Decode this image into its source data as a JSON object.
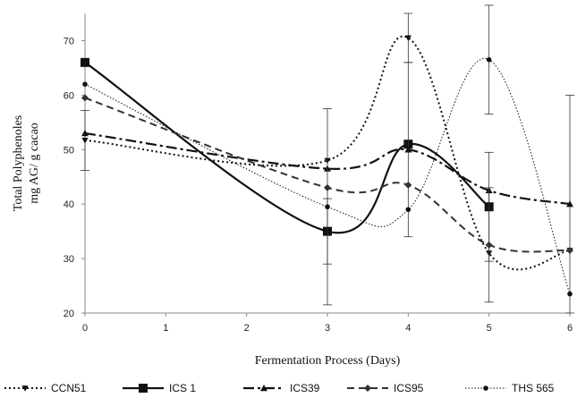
{
  "chart_data": {
    "type": "line",
    "title": "",
    "xlabel": "Fermentation Process (Days)",
    "ylabel_lines": [
      "Total Polyphenoles",
      "mg AG/ g cacao"
    ],
    "x_ticks": [
      0,
      1,
      2,
      3,
      4,
      5,
      6
    ],
    "y_ticks": [
      20,
      30,
      40,
      50,
      60,
      70
    ],
    "xlim": [
      0,
      6
    ],
    "ylim": [
      20,
      75
    ],
    "grid": false,
    "legend_position": "bottom",
    "smooth": true,
    "series": [
      {
        "name": "CCN51",
        "color": "#111111",
        "dash": "dotted",
        "marker": "triangle-down",
        "points": [
          {
            "x": 0,
            "y": 51.7,
            "err": 5.5
          },
          {
            "x": 3,
            "y": 48.0
          },
          {
            "x": 4,
            "y": 70.5,
            "err": 4.5
          },
          {
            "x": 5,
            "y": 31.0
          },
          {
            "x": 6,
            "y": 31.5
          }
        ]
      },
      {
        "name": "ICS 1",
        "color": "#111111",
        "dash": "solid",
        "marker": "square",
        "points": [
          {
            "x": 0,
            "y": 66.0
          },
          {
            "x": 3,
            "y": 35.0,
            "err": 6.0
          },
          {
            "x": 4,
            "y": 51.0
          },
          {
            "x": 5,
            "y": 39.5,
            "err": 10.0
          }
        ]
      },
      {
        "name": "ICS39",
        "color": "#111111",
        "dash": "dashdot",
        "marker": "triangle",
        "points": [
          {
            "x": 0,
            "y": 53.0
          },
          {
            "x": 3,
            "y": 46.5
          },
          {
            "x": 4,
            "y": 50.0,
            "err": 16.0
          },
          {
            "x": 5,
            "y": 42.5
          },
          {
            "x": 6,
            "y": 40.0,
            "err": 20.0
          }
        ]
      },
      {
        "name": "ICS95",
        "color": "#333333",
        "dash": "dashed",
        "marker": "diamond",
        "points": [
          {
            "x": 0,
            "y": 59.5
          },
          {
            "x": 3,
            "y": 43.0
          },
          {
            "x": 4,
            "y": 43.5
          },
          {
            "x": 5,
            "y": 32.5,
            "err": 10.5
          },
          {
            "x": 6,
            "y": 31.5
          }
        ]
      },
      {
        "name": "THS 565",
        "color": "#111111",
        "dash": "thin-dotted",
        "marker": "circle",
        "points": [
          {
            "x": 0,
            "y": 62.0
          },
          {
            "x": 3,
            "y": 39.5,
            "err": 18.0
          },
          {
            "x": 4,
            "y": 39.0
          },
          {
            "x": 5,
            "y": 66.5,
            "err": 10.0
          },
          {
            "x": 6,
            "y": 23.5
          }
        ]
      }
    ]
  }
}
